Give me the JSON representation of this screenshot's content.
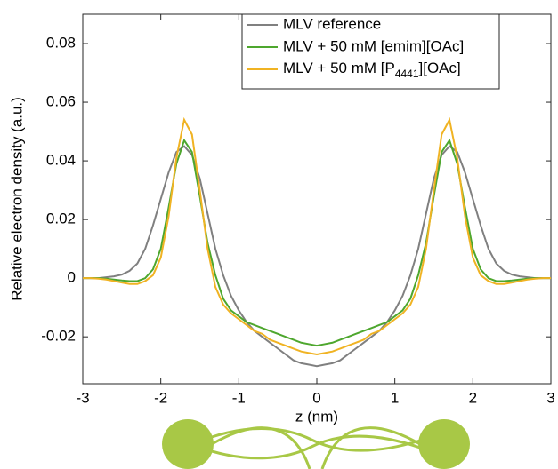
{
  "chart_data": {
    "type": "line",
    "xlabel": "z (nm)",
    "ylabel": "Relative electron density (a.u.)",
    "xlim": [
      -3,
      3
    ],
    "ylim": [
      -0.036,
      0.09
    ],
    "xticks": [
      -3,
      -2,
      -1,
      0,
      1,
      2,
      3
    ],
    "yticks": [
      -0.02,
      0,
      0.02,
      0.04,
      0.06,
      0.08
    ],
    "legend": "upper right",
    "x": [
      -3,
      -2.9,
      -2.8,
      -2.7,
      -2.6,
      -2.5,
      -2.4,
      -2.3,
      -2.2,
      -2.1,
      -2,
      -1.9,
      -1.8,
      -1.7,
      -1.6,
      -1.5,
      -1.4,
      -1.3,
      -1.2,
      -1.1,
      -1,
      -0.9,
      -0.8,
      -0.7,
      -0.6,
      -0.5,
      -0.4,
      -0.3,
      -0.2,
      -0.1,
      0,
      0.1,
      0.2,
      0.3,
      0.4,
      0.5,
      0.6,
      0.7,
      0.8,
      0.9,
      1,
      1.1,
      1.2,
      1.3,
      1.4,
      1.5,
      1.6,
      1.7,
      1.8,
      1.9,
      2,
      2.1,
      2.2,
      2.3,
      2.4,
      2.5,
      2.6,
      2.7,
      2.8,
      2.9,
      3
    ],
    "series": [
      {
        "name": "MLV reference",
        "color": "#808080",
        "values": [
          0,
          0,
          0,
          0.0003,
          0.0006,
          0.0012,
          0.0025,
          0.005,
          0.01,
          0.018,
          0.027,
          0.036,
          0.043,
          0.045,
          0.042,
          0.034,
          0.022,
          0.01,
          0.001,
          -0.006,
          -0.011,
          -0.015,
          -0.018,
          -0.02,
          -0.022,
          -0.024,
          -0.026,
          -0.028,
          -0.029,
          -0.0295,
          -0.03,
          -0.0295,
          -0.029,
          -0.028,
          -0.026,
          -0.024,
          -0.022,
          -0.02,
          -0.018,
          -0.015,
          -0.011,
          -0.006,
          0.001,
          0.01,
          0.022,
          0.034,
          0.042,
          0.045,
          0.043,
          0.036,
          0.027,
          0.018,
          0.01,
          0.005,
          0.0025,
          0.0012,
          0.0006,
          0.0003,
          0,
          0,
          0
        ]
      },
      {
        "name": "MLV + 50 mM [emim][OAc]",
        "color": "#4ea72e",
        "values": [
          0,
          0,
          0,
          -0.0002,
          -0.0005,
          -0.0008,
          -0.001,
          -0.001,
          0,
          0.003,
          0.01,
          0.024,
          0.039,
          0.047,
          0.043,
          0.028,
          0.012,
          0.001,
          -0.007,
          -0.011,
          -0.013,
          -0.015,
          -0.016,
          -0.017,
          -0.018,
          -0.019,
          -0.02,
          -0.021,
          -0.022,
          -0.0225,
          -0.023,
          -0.0225,
          -0.022,
          -0.021,
          -0.02,
          -0.019,
          -0.018,
          -0.017,
          -0.016,
          -0.015,
          -0.013,
          -0.011,
          -0.007,
          0.001,
          0.012,
          0.028,
          0.043,
          0.047,
          0.039,
          0.024,
          0.01,
          0.003,
          0,
          -0.001,
          -0.001,
          -0.0008,
          -0.0005,
          -0.0002,
          0,
          0,
          0
        ]
      },
      {
        "name": "MLV + 50 mM [P4441][OAc]",
        "color": "#f0b323",
        "values": [
          0,
          0,
          -0.0002,
          -0.0005,
          -0.001,
          -0.0015,
          -0.002,
          -0.002,
          -0.001,
          0.001,
          0.007,
          0.021,
          0.041,
          0.054,
          0.049,
          0.03,
          0.01,
          -0.003,
          -0.009,
          -0.012,
          -0.014,
          -0.016,
          -0.018,
          -0.019,
          -0.021,
          -0.022,
          -0.023,
          -0.024,
          -0.025,
          -0.0255,
          -0.026,
          -0.0255,
          -0.025,
          -0.024,
          -0.023,
          -0.022,
          -0.021,
          -0.019,
          -0.018,
          -0.016,
          -0.014,
          -0.012,
          -0.009,
          -0.003,
          0.01,
          0.03,
          0.049,
          0.054,
          0.041,
          0.021,
          0.007,
          0.001,
          -0.001,
          -0.002,
          -0.002,
          -0.0015,
          -0.001,
          -0.0005,
          -0.0002,
          0,
          0
        ]
      }
    ]
  }
}
